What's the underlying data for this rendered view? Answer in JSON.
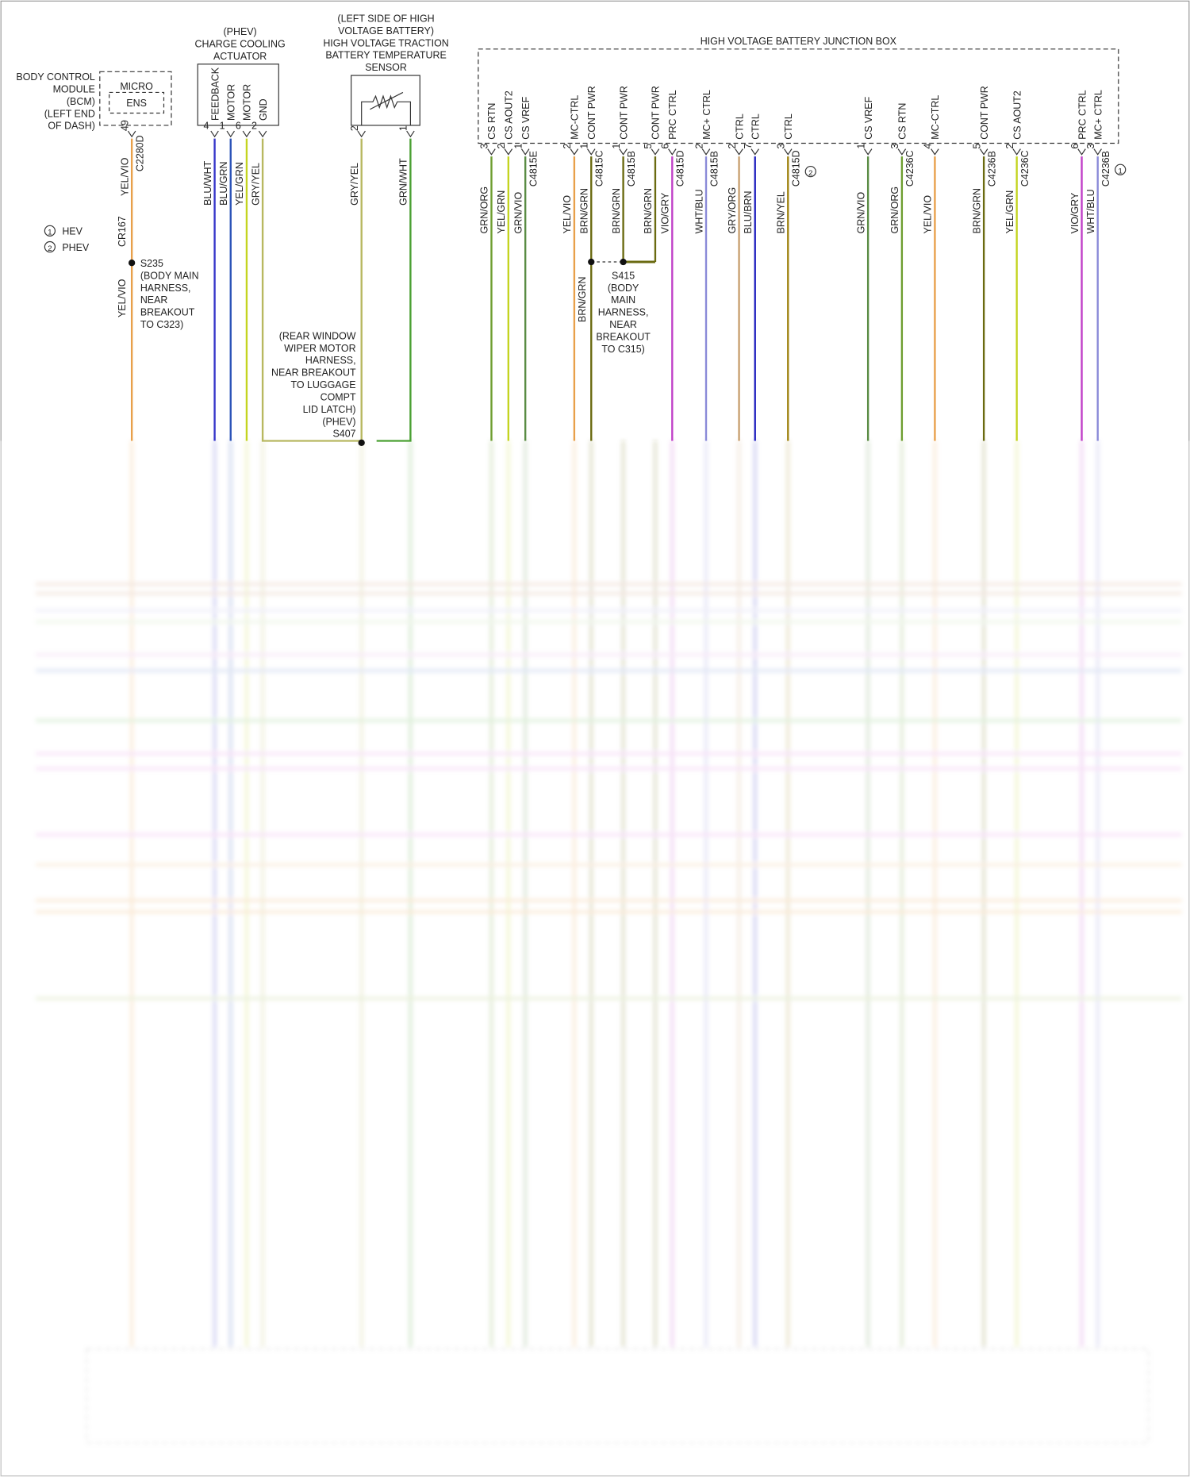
{
  "legend": [
    {
      "marker": "1",
      "label": "HEV"
    },
    {
      "marker": "2",
      "label": "PHEV"
    }
  ],
  "components": {
    "bcm": {
      "lines": [
        "BODY CONTROL",
        "MODULE",
        "(BCM)",
        "(LEFT END",
        "OF DASH)"
      ],
      "inner": [
        "MICRO",
        "ENS"
      ]
    },
    "actuator": {
      "lines": [
        "(PHEV)",
        "CHARGE COOLING",
        "ACTUATOR"
      ]
    },
    "sensor": {
      "lines": [
        "(LEFT SIDE OF HIGH",
        "VOLTAGE BATTERY)",
        "HIGH VOLTAGE TRACTION",
        "BATTERY TEMPERATURE",
        "SENSOR"
      ]
    },
    "junction_box": {
      "title": "HIGH VOLTAGE BATTERY JUNCTION BOX"
    }
  },
  "wires": [
    {
      "pin": "49",
      "code": "YEL/VIO",
      "color": "#e8a04a",
      "connector": "C2280D"
    },
    {
      "pin": "4",
      "name": "FEEDBACK",
      "code": "BLU/WHT",
      "color": "#3434c8"
    },
    {
      "pin": "1",
      "name": "MOTOR",
      "code": "BLU/GRN",
      "color": "#2a52b8"
    },
    {
      "pin": "6",
      "name": "MOTOR",
      "code": "YEL/GRN",
      "color": "#c4d420"
    },
    {
      "pin": "2",
      "name": "GND",
      "code": "GRY/YEL",
      "color": "#b8b860"
    },
    {
      "pin": "2",
      "code": "GRY/YEL",
      "color": "#b8b860"
    },
    {
      "pin": "1",
      "code": "GRN/WHT",
      "color": "#4aa032"
    },
    {
      "pin": "3",
      "name": "CS RTN",
      "code": "GRN/ORG",
      "color": "#6e9e30"
    },
    {
      "pin": "2",
      "name": "CS AOUT2",
      "code": "YEL/GRN",
      "color": "#c4d420"
    },
    {
      "pin": "1",
      "name": "CS VREF",
      "code": "GRN/VIO",
      "color": "#5a8c44",
      "connector": "C4815E"
    },
    {
      "pin": "2",
      "name": "MC-CTRL",
      "code": "YEL/VIO",
      "color": "#e8a04a"
    },
    {
      "pin": "1",
      "name": "CONT PWR",
      "code": "BRN/GRN",
      "color": "#6a6a10",
      "connector": "C4815C"
    },
    {
      "pin": "1",
      "name": "CONT PWR",
      "code": "BRN/GRN",
      "color": "#6a6a10",
      "connector": "C4815B"
    },
    {
      "pin": "5",
      "name": "CONT PWR",
      "code": "BRN/GRN",
      "color": "#6a6a10"
    },
    {
      "pin": "6",
      "name": "PRC CTRL",
      "code": "VIO/GRY",
      "color": "#c040c8",
      "connector": "C4815D"
    },
    {
      "pin": "2",
      "name": "MC+ CTRL",
      "code": "WHT/BLU",
      "color": "#8a8ad8",
      "connector": "C4815B"
    },
    {
      "pin": "2",
      "name": "CTRL",
      "code": "GRY/ORG",
      "color": "#c8a070"
    },
    {
      "pin": "7",
      "name": "CTRL",
      "code": "BLU/BRN",
      "color": "#2424c0"
    },
    {
      "pin": "3",
      "name": "CTRL",
      "code": "BRN/YEL",
      "color": "#a08414",
      "connector": "C4815D",
      "marker": "2"
    },
    {
      "pin": "1",
      "name": "CS VREF",
      "code": "GRN/VIO",
      "color": "#5a8c44"
    },
    {
      "pin": "3",
      "name": "CS RTN",
      "code": "GRN/ORG",
      "color": "#6e9e30",
      "connector": "C4236C"
    },
    {
      "pin": "4",
      "name": "MC-CTRL",
      "code": "YEL/VIO",
      "color": "#e8a04a"
    },
    {
      "pin": "5",
      "name": "CONT PWR",
      "code": "BRN/GRN",
      "color": "#6a6a10",
      "connector": "C4236B"
    },
    {
      "pin": "2",
      "name": "CS AOUT2",
      "code": "YEL/GRN",
      "color": "#c4d420",
      "connector": "C4236C"
    },
    {
      "pin": "6",
      "name": "PRC CTRL",
      "code": "VIO/GRY",
      "color": "#c040c8"
    },
    {
      "pin": "3",
      "name": "MC+ CTRL",
      "code": "WHT/BLU",
      "color": "#8a8ad8",
      "connector": "C4236B",
      "marker": "1"
    }
  ],
  "splices": {
    "cr167": "CR167",
    "s235": {
      "lines": [
        "S235",
        "(BODY MAIN",
        "HARNESS,",
        "NEAR",
        "BREAKOUT",
        "TO C323)"
      ],
      "lower_code": "YEL/VIO"
    },
    "s415": {
      "lines": [
        "S415",
        "(BODY",
        "MAIN",
        "HARNESS,",
        "NEAR",
        "BREAKOUT",
        "TO C315)"
      ],
      "lower_code": "BRN/GRN"
    },
    "s407": {
      "lines": [
        "(REAR WINDOW",
        "WIPER MOTOR",
        "HARNESS,",
        "NEAR BREAKOUT",
        "TO LUGGAGE",
        "COMPT",
        "LID LATCH)",
        "(PHEV)",
        "S407"
      ]
    }
  }
}
